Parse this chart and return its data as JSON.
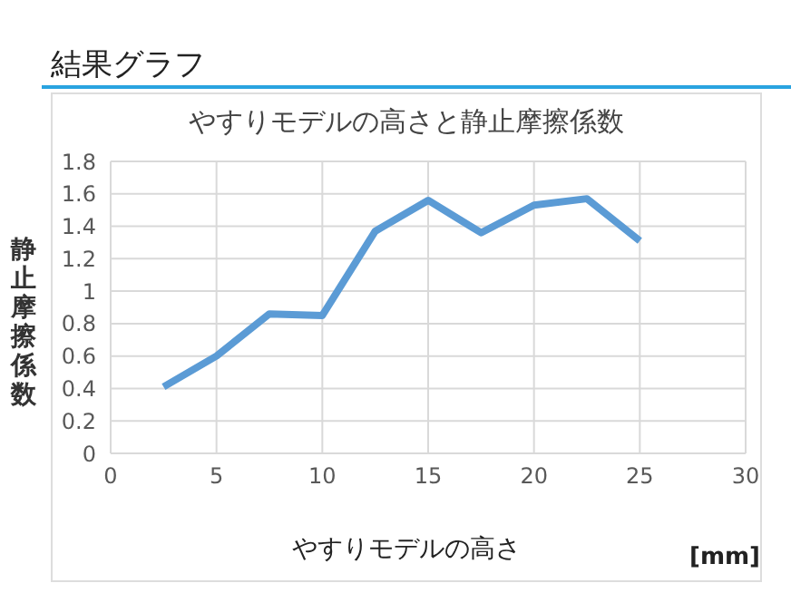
{
  "chart_data": {
    "type": "line",
    "title": "結果グラフ",
    "subtitle": "やすりモデルの高さと静止摩擦係数",
    "xlabel": "やすりモデルの高さ",
    "ylabel": "静止摩擦係数",
    "annotations": [
      "[mm]"
    ],
    "x": [
      2.5,
      5,
      7.5,
      10,
      12.5,
      15,
      17.5,
      20,
      22.5,
      25
    ],
    "series": [
      {
        "color": "#5b9bd5",
        "values": [
          0.41,
          0.6,
          0.86,
          0.85,
          1.37,
          1.56,
          1.36,
          1.53,
          1.57,
          1.31
        ]
      }
    ],
    "xlim": [
      0,
      30
    ],
    "xticks": [
      0,
      5,
      10,
      15,
      20,
      25,
      30
    ],
    "ylim": [
      0,
      1.8
    ],
    "yticks": [
      0,
      0.2,
      0.4,
      0.6,
      0.8,
      1,
      1.2,
      1.4,
      1.6,
      1.8
    ],
    "grid": true,
    "legend": false,
    "marker": "none",
    "line_style": "solid"
  }
}
